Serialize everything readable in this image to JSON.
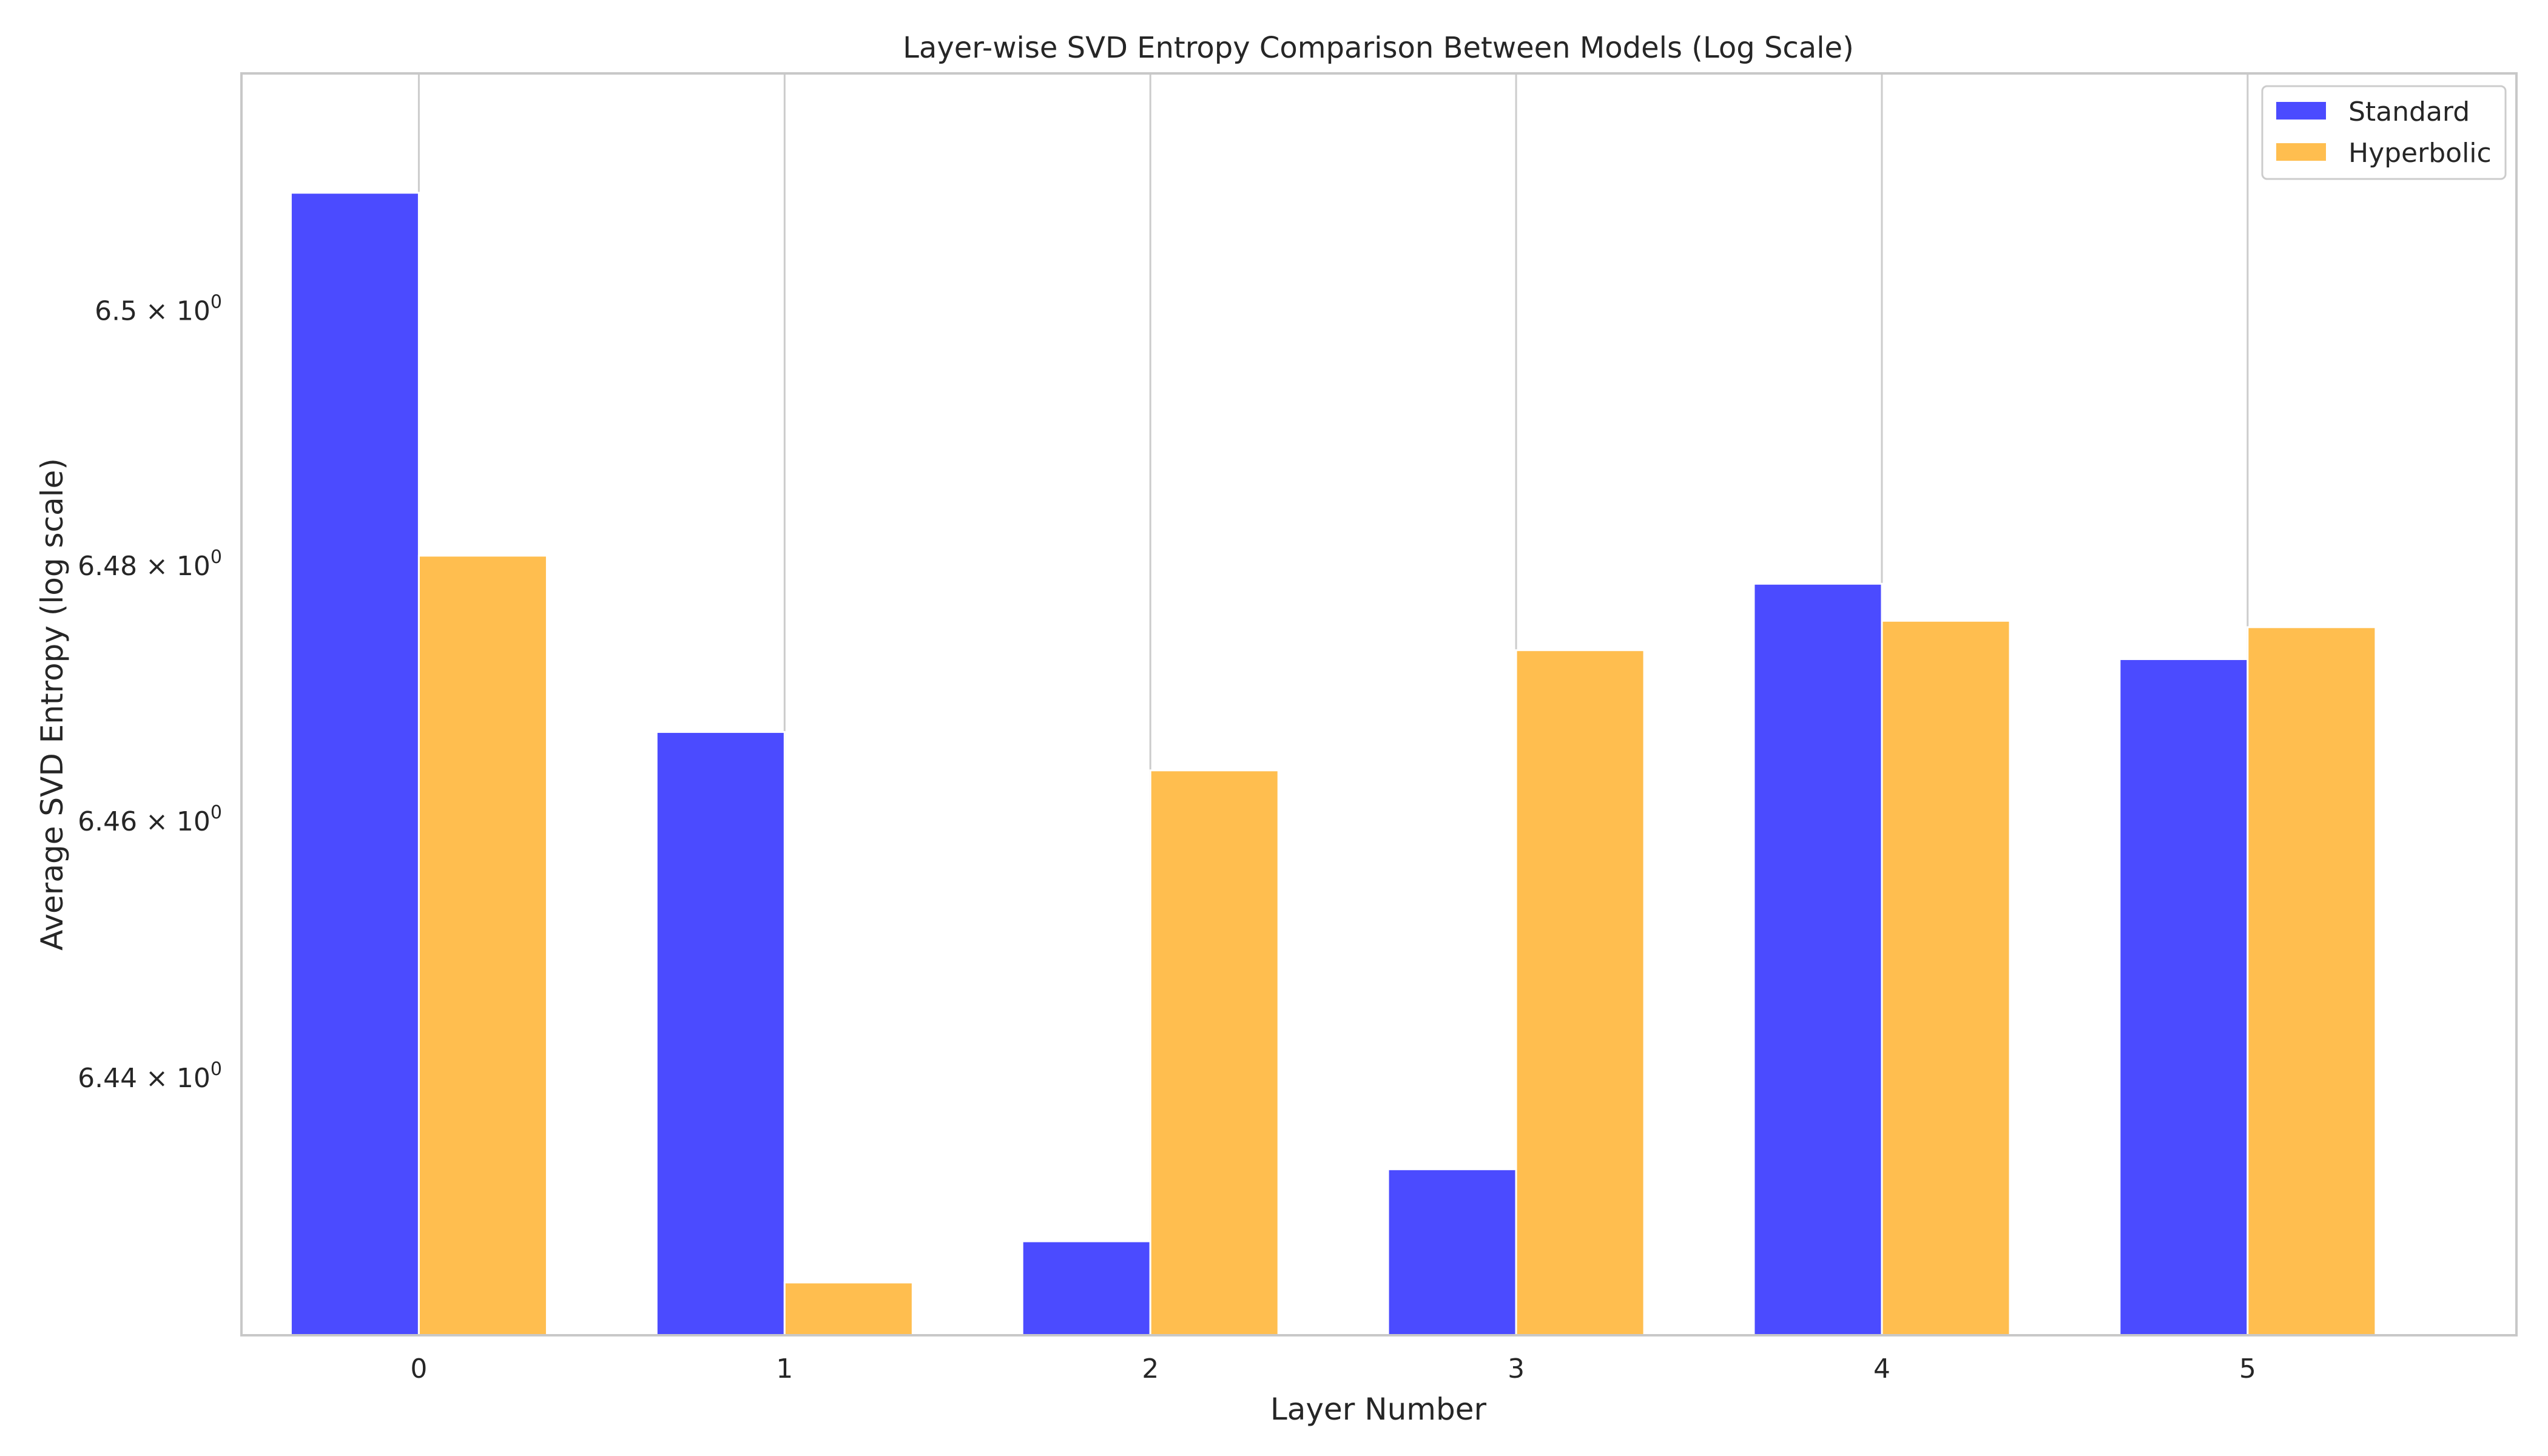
{
  "chart_data": {
    "type": "bar",
    "title": "Layer-wise SVD Entropy Comparison Between Models (Log Scale)",
    "xlabel": "Layer Number",
    "ylabel": "Average SVD Entropy (log scale)",
    "yscale": "log",
    "categories": [
      "0",
      "1",
      "2",
      "3",
      "4",
      "5"
    ],
    "series": [
      {
        "name": "Standard",
        "color": "#4b4bff",
        "values": [
          6.5093,
          6.467,
          6.4273,
          6.4329,
          6.4786,
          6.4727
        ]
      },
      {
        "name": "Hyperbolic",
        "color": "#ffbe4f",
        "values": [
          6.4808,
          6.4241,
          6.464,
          6.4734,
          6.4757,
          6.4752
        ]
      }
    ],
    "ylim": [
      6.42,
      6.5187
    ],
    "yticks": [
      {
        "value": 6.44,
        "mantissa": "6.44"
      },
      {
        "value": 6.46,
        "mantissa": "6.46"
      },
      {
        "value": 6.48,
        "mantissa": "6.48"
      },
      {
        "value": 6.5,
        "mantissa": "6.5"
      }
    ],
    "ytick_suffix": "× 10",
    "ytick_exponent": "0",
    "grid": {
      "x": true,
      "y": false
    },
    "legend_position": "top-right"
  }
}
